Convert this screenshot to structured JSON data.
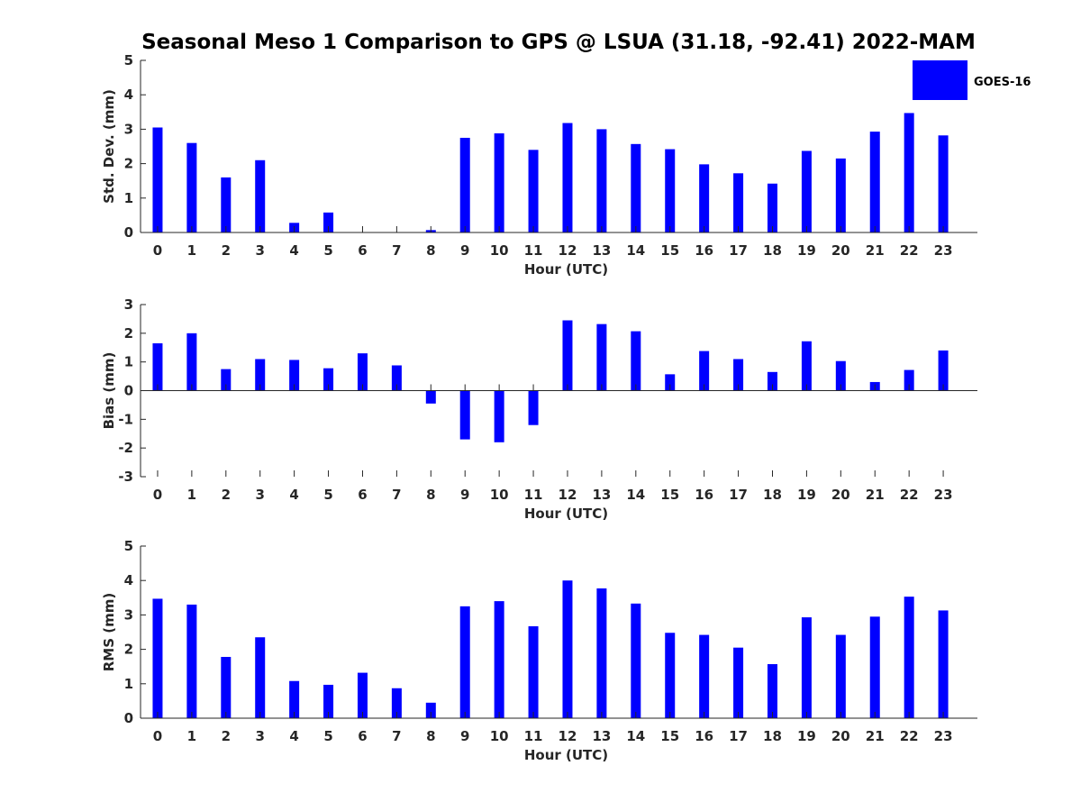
{
  "title": "Seasonal Meso 1 Comparison to GPS @ LSUA (31.18, -92.41) 2022-MAM",
  "bar_color": "#0000ff",
  "legend": {
    "label": "GOES-16",
    "color": "#0000ff"
  },
  "chart_data": [
    {
      "type": "bar",
      "categories": [
        "0",
        "1",
        "2",
        "3",
        "4",
        "5",
        "6",
        "7",
        "8",
        "9",
        "10",
        "11",
        "12",
        "13",
        "14",
        "15",
        "16",
        "17",
        "18",
        "19",
        "20",
        "21",
        "22",
        "23"
      ],
      "series": [
        {
          "name": "GOES-16",
          "values": [
            3.05,
            2.6,
            1.6,
            2.1,
            0.28,
            0.58,
            0,
            0,
            0.07,
            2.75,
            2.88,
            2.4,
            3.18,
            3.0,
            2.57,
            2.42,
            1.98,
            1.72,
            1.42,
            2.37,
            2.15,
            2.93,
            3.47,
            2.82
          ]
        }
      ],
      "xlabel": "Hour (UTC)",
      "ylabel": "Std. Dev. (mm)",
      "ylim": [
        0,
        5
      ],
      "yticks": [
        "0",
        "1",
        "2",
        "3",
        "4",
        "5"
      ]
    },
    {
      "type": "bar",
      "categories": [
        "0",
        "1",
        "2",
        "3",
        "4",
        "5",
        "6",
        "7",
        "8",
        "9",
        "10",
        "11",
        "12",
        "13",
        "14",
        "15",
        "16",
        "17",
        "18",
        "19",
        "20",
        "21",
        "22",
        "23"
      ],
      "series": [
        {
          "name": "GOES-16",
          "values": [
            1.65,
            2.0,
            0.75,
            1.1,
            1.07,
            0.78,
            1.3,
            0.88,
            -0.45,
            -1.7,
            -1.8,
            -1.2,
            2.45,
            2.32,
            2.07,
            0.57,
            1.38,
            1.1,
            0.65,
            1.72,
            1.03,
            0.3,
            0.72,
            1.4
          ]
        }
      ],
      "xlabel": "Hour (UTC)",
      "ylabel": "Bias (mm)",
      "ylim": [
        -3,
        3
      ],
      "yticks": [
        "-3",
        "-2",
        "-1",
        "0",
        "1",
        "2",
        "3"
      ]
    },
    {
      "type": "bar",
      "categories": [
        "0",
        "1",
        "2",
        "3",
        "4",
        "5",
        "6",
        "7",
        "8",
        "9",
        "10",
        "11",
        "12",
        "13",
        "14",
        "15",
        "16",
        "17",
        "18",
        "19",
        "20",
        "21",
        "22",
        "23"
      ],
      "series": [
        {
          "name": "GOES-16",
          "values": [
            3.47,
            3.3,
            1.78,
            2.35,
            1.08,
            0.97,
            1.32,
            0.87,
            0.45,
            3.25,
            3.4,
            2.67,
            4.0,
            3.77,
            3.33,
            2.48,
            2.42,
            2.05,
            1.57,
            2.93,
            2.42,
            2.95,
            3.53,
            3.13
          ]
        }
      ],
      "xlabel": "Hour (UTC)",
      "ylabel": "RMS (mm)",
      "ylim": [
        0,
        5
      ],
      "yticks": [
        "0",
        "1",
        "2",
        "3",
        "4",
        "5"
      ]
    }
  ]
}
